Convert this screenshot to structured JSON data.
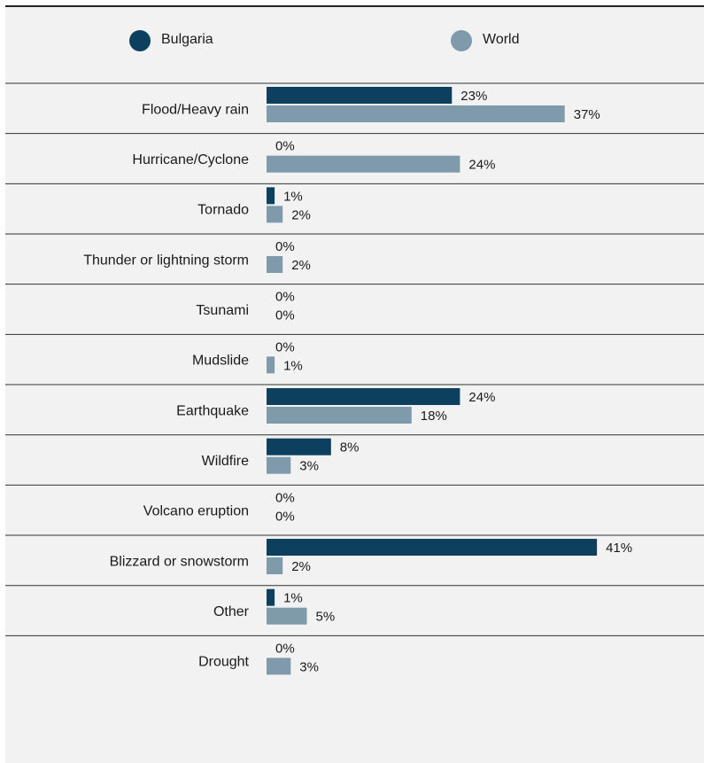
{
  "chart_data": {
    "type": "bar",
    "orientation": "horizontal",
    "categories": [
      "Flood/Heavy rain",
      "Hurricane/Cyclone",
      "Tornado",
      "Thunder or lightning storm",
      "Tsunami",
      "Mudslide",
      "Earthquake",
      "Wildfire",
      "Volcano eruption",
      "Blizzard or snowstorm",
      "Other",
      "Drought"
    ],
    "series": [
      {
        "name": "Bulgaria",
        "color": "#0d3f5f",
        "values": [
          23,
          0,
          1,
          0,
          0,
          0,
          24,
          8,
          0,
          41,
          1,
          0
        ],
        "labels": [
          "23%",
          "0%",
          "1%",
          "0%",
          "0%",
          "0%",
          "24%",
          "8%",
          "0%",
          "41%",
          "1%",
          "0%"
        ]
      },
      {
        "name": "World",
        "color": "#7f9aaa",
        "values": [
          37,
          24,
          2,
          2,
          0,
          1,
          18,
          3,
          0,
          2,
          5,
          3
        ],
        "labels": [
          "37%",
          "24%",
          "2%",
          "2%",
          "0%",
          "1%",
          "18%",
          "3%",
          "0%",
          "2%",
          "5%",
          "3%"
        ]
      }
    ],
    "unit": "%",
    "xlim": [
      0,
      41
    ],
    "legend_position": "top",
    "grid": false
  }
}
